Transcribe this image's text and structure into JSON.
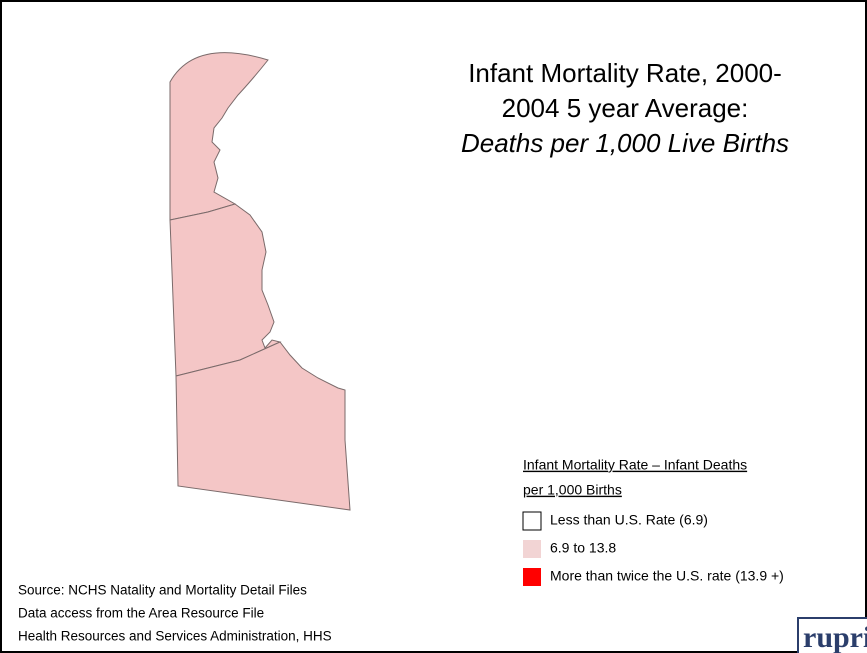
{
  "title": {
    "lines": [
      "Infant Mortality Rate, 2000-",
      "2004 5 year Average:",
      "Deaths per 1,000 Live Births"
    ]
  },
  "legend": {
    "title_lines": [
      "Infant Mortality Rate – Infant Deaths",
      "per 1,000 Births"
    ],
    "items": [
      {
        "label": "Less than U.S. Rate (6.9)",
        "color": "#ffffff"
      },
      {
        "label": "6.9 to 13.8",
        "color": "#f2d4d4"
      },
      {
        "label": "More than twice the U.S. rate (13.9 +)",
        "color": "#ff0000"
      }
    ]
  },
  "map": {
    "fill_item": 1
  },
  "source": [
    "Source: NCHS Natality and Mortality Detail Files",
    "Data access from the Area Resource File",
    "Health Resources and Services Administration, HHS"
  ],
  "logo": "rupri"
}
